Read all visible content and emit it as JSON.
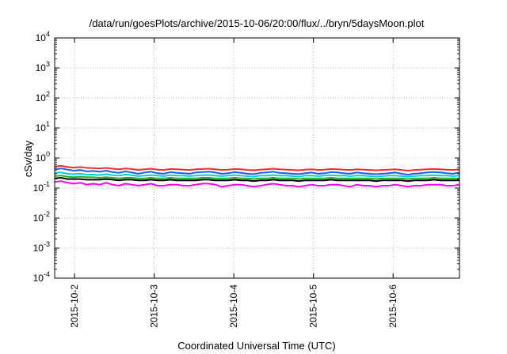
{
  "chart_data": {
    "type": "line",
    "title": "/data/run/goesPlots/archive/2015-10-06/20:00/flux/../bryn/5daysMoon.plot",
    "xlabel": "Coordinated Universal Time (UTC)",
    "ylabel": "cSv/day",
    "yscale": "log",
    "ylim": [
      0.0001,
      10000
    ],
    "y_ticks": [
      {
        "base": "10",
        "exp": "-4"
      },
      {
        "base": "10",
        "exp": "-3"
      },
      {
        "base": "10",
        "exp": "-2"
      },
      {
        "base": "10",
        "exp": "-1"
      },
      {
        "base": "10",
        "exp": "0"
      },
      {
        "base": "10",
        "exp": "1"
      },
      {
        "base": "10",
        "exp": "2"
      },
      {
        "base": "10",
        "exp": "3"
      },
      {
        "base": "10",
        "exp": "4"
      }
    ],
    "xlim": [
      "2015-10-01T18:00",
      "2015-10-06T20:00"
    ],
    "x_ticks": [
      "2015-10-2",
      "2015-10-3",
      "2015-10-4",
      "2015-10-5",
      "2015-10-6"
    ],
    "x_tick_dates": [
      "2015-10-02T00:00",
      "2015-10-03T00:00",
      "2015-10-04T00:00",
      "2015-10-05T00:00",
      "2015-10-06T00:00"
    ],
    "grid": true,
    "series": [
      {
        "color": "#ff2a2a",
        "values": [
          0.52,
          0.55,
          0.5,
          0.48,
          0.5,
          0.47,
          0.46,
          0.45,
          0.47,
          0.44,
          0.42,
          0.45,
          0.43,
          0.4,
          0.42,
          0.44,
          0.41,
          0.4,
          0.43,
          0.42,
          0.41,
          0.4,
          0.42,
          0.43,
          0.44,
          0.42,
          0.4,
          0.41,
          0.43,
          0.42,
          0.4,
          0.39,
          0.41,
          0.42,
          0.44,
          0.42,
          0.41,
          0.4,
          0.39,
          0.41,
          0.42,
          0.4,
          0.41,
          0.43,
          0.42,
          0.41,
          0.4,
          0.42,
          0.41,
          0.4,
          0.39,
          0.4,
          0.41,
          0.42,
          0.4,
          0.38,
          0.4,
          0.41,
          0.42,
          0.43,
          0.42,
          0.41,
          0.4,
          0.42
        ]
      },
      {
        "color": "#1a5cff",
        "values": [
          0.42,
          0.45,
          0.41,
          0.38,
          0.4,
          0.36,
          0.37,
          0.35,
          0.38,
          0.34,
          0.32,
          0.36,
          0.33,
          0.3,
          0.33,
          0.35,
          0.31,
          0.3,
          0.34,
          0.32,
          0.31,
          0.3,
          0.33,
          0.34,
          0.35,
          0.33,
          0.3,
          0.31,
          0.34,
          0.32,
          0.3,
          0.29,
          0.32,
          0.33,
          0.35,
          0.32,
          0.31,
          0.3,
          0.29,
          0.31,
          0.33,
          0.3,
          0.31,
          0.34,
          0.33,
          0.31,
          0.3,
          0.33,
          0.31,
          0.3,
          0.29,
          0.3,
          0.31,
          0.33,
          0.3,
          0.28,
          0.3,
          0.31,
          0.33,
          0.34,
          0.33,
          0.31,
          0.3,
          0.33
        ]
      },
      {
        "color": "#00d0d0",
        "values": [
          0.32,
          0.33,
          0.3,
          0.29,
          0.3,
          0.28,
          0.28,
          0.27,
          0.29,
          0.27,
          0.26,
          0.28,
          0.27,
          0.25,
          0.26,
          0.27,
          0.26,
          0.25,
          0.27,
          0.26,
          0.26,
          0.25,
          0.26,
          0.27,
          0.27,
          0.26,
          0.25,
          0.26,
          0.27,
          0.26,
          0.25,
          0.24,
          0.26,
          0.26,
          0.27,
          0.26,
          0.26,
          0.25,
          0.24,
          0.26,
          0.26,
          0.25,
          0.26,
          0.27,
          0.26,
          0.26,
          0.25,
          0.26,
          0.26,
          0.25,
          0.24,
          0.25,
          0.26,
          0.26,
          0.25,
          0.24,
          0.25,
          0.26,
          0.26,
          0.27,
          0.26,
          0.26,
          0.25,
          0.26
        ]
      },
      {
        "color": "#22aa22",
        "values": [
          0.25,
          0.26,
          0.24,
          0.23,
          0.24,
          0.23,
          0.23,
          0.22,
          0.23,
          0.22,
          0.21,
          0.22,
          0.22,
          0.21,
          0.21,
          0.22,
          0.21,
          0.21,
          0.22,
          0.21,
          0.21,
          0.21,
          0.21,
          0.22,
          0.22,
          0.21,
          0.21,
          0.21,
          0.22,
          0.21,
          0.21,
          0.2,
          0.21,
          0.21,
          0.22,
          0.21,
          0.21,
          0.21,
          0.2,
          0.21,
          0.21,
          0.21,
          0.21,
          0.22,
          0.21,
          0.21,
          0.21,
          0.21,
          0.21,
          0.21,
          0.2,
          0.21,
          0.21,
          0.21,
          0.21,
          0.2,
          0.21,
          0.21,
          0.21,
          0.22,
          0.21,
          0.21,
          0.21,
          0.21
        ]
      },
      {
        "color": "#000000",
        "values": [
          0.21,
          0.22,
          0.2,
          0.2,
          0.2,
          0.19,
          0.19,
          0.19,
          0.2,
          0.19,
          0.18,
          0.19,
          0.19,
          0.18,
          0.18,
          0.19,
          0.18,
          0.18,
          0.19,
          0.18,
          0.18,
          0.18,
          0.18,
          0.19,
          0.19,
          0.18,
          0.18,
          0.18,
          0.19,
          0.18,
          0.18,
          0.17,
          0.18,
          0.18,
          0.19,
          0.18,
          0.18,
          0.18,
          0.17,
          0.18,
          0.18,
          0.18,
          0.18,
          0.19,
          0.18,
          0.18,
          0.18,
          0.18,
          0.18,
          0.18,
          0.17,
          0.18,
          0.18,
          0.18,
          0.18,
          0.17,
          0.18,
          0.18,
          0.18,
          0.19,
          0.18,
          0.18,
          0.18,
          0.18
        ]
      },
      {
        "color": "#ff00ff",
        "values": [
          0.16,
          0.17,
          0.15,
          0.14,
          0.15,
          0.13,
          0.14,
          0.13,
          0.15,
          0.13,
          0.12,
          0.14,
          0.13,
          0.12,
          0.13,
          0.14,
          0.12,
          0.12,
          0.13,
          0.13,
          0.12,
          0.12,
          0.13,
          0.14,
          0.14,
          0.13,
          0.11,
          0.12,
          0.13,
          0.13,
          0.12,
          0.11,
          0.12,
          0.13,
          0.14,
          0.13,
          0.12,
          0.12,
          0.11,
          0.12,
          0.13,
          0.12,
          0.12,
          0.13,
          0.13,
          0.12,
          0.11,
          0.13,
          0.12,
          0.12,
          0.11,
          0.12,
          0.12,
          0.13,
          0.12,
          0.11,
          0.12,
          0.12,
          0.13,
          0.13,
          0.13,
          0.12,
          0.12,
          0.13
        ]
      }
    ]
  }
}
